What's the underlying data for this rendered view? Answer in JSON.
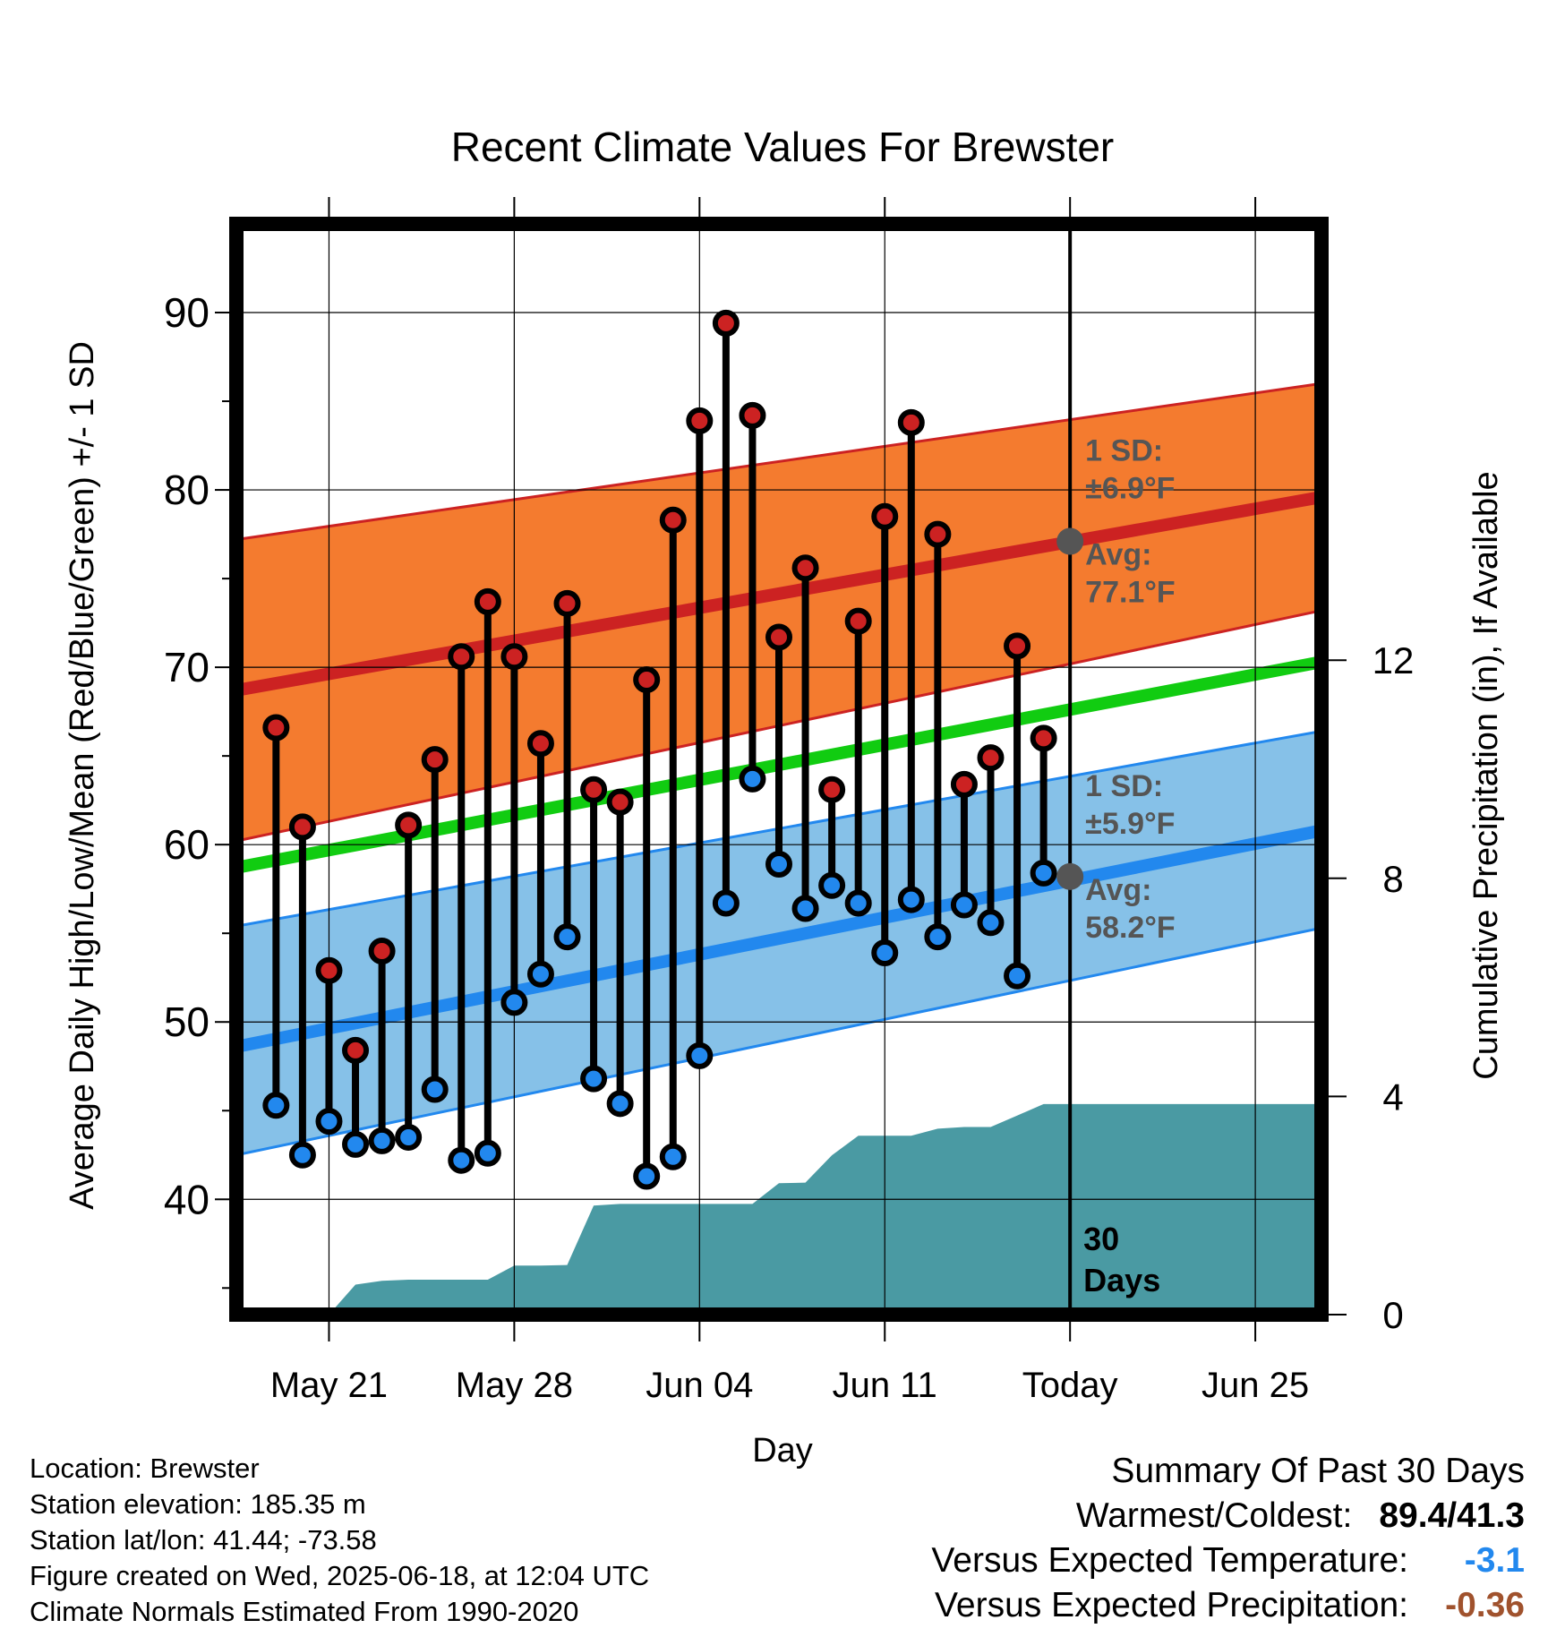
{
  "chart_data": {
    "type": "line",
    "title": "Recent Climate Values For Brewster",
    "xlabel": "Day",
    "ylabel": "Average Daily High/Low/Mean (Red/Blue/Green) +/- 1 SD",
    "y2label": "Cumulative Precipitation (in), If Available",
    "ylim": [
      33.5,
      95
    ],
    "y2lim": [
      0,
      20
    ],
    "yticks": [
      40,
      50,
      60,
      70,
      80,
      90
    ],
    "y2ticks": [
      0,
      4,
      8,
      12
    ],
    "x_tick_labels": [
      "May 21",
      "May 28",
      "Jun 04",
      "Jun 11",
      "Today",
      "Jun 25"
    ],
    "x_tick_day_offsets": [
      -28,
      -21,
      -14,
      -7,
      0,
      7
    ],
    "xlim_day_offsets": [
      -31.5,
      9.5
    ],
    "grid": true,
    "today_marker_label": "30 Days",
    "normals": {
      "x": [
        -31.5,
        9.5
      ],
      "high_avg": [
        68.7,
        79.6
      ],
      "high_sd_upper": [
        77.2,
        86.0
      ],
      "high_sd_lower": [
        60.2,
        73.2
      ],
      "mean_avg": [
        58.7,
        70.3
      ],
      "low_avg": [
        48.6,
        60.8
      ],
      "low_sd_upper": [
        55.4,
        66.4
      ],
      "low_sd_lower": [
        42.5,
        55.3
      ]
    },
    "today_annotations": {
      "high_sd_label": "1 SD:",
      "high_sd_value": "±6.9°F",
      "high_avg_label": "Avg:",
      "high_avg_value": "77.1°F",
      "high_avg": 77.1,
      "low_sd_label": "1 SD:",
      "low_sd_value": "±5.9°F",
      "low_avg_label": "Avg:",
      "low_avg_value": "58.2°F",
      "low_avg": 58.2
    },
    "series": [
      {
        "name": "High",
        "color": "#cc2222",
        "x": [
          -30,
          -29,
          -28,
          -27,
          -26,
          -25,
          -24,
          -23,
          -22,
          -21,
          -20,
          -19,
          -18,
          -17,
          -16,
          -15,
          -14,
          -13,
          -12,
          -11,
          -10,
          -9,
          -8,
          -7,
          -6,
          -5,
          -4,
          -3,
          -2,
          -1
        ],
        "values": [
          66.6,
          61.0,
          52.9,
          48.4,
          54.0,
          61.1,
          64.8,
          70.6,
          73.7,
          70.6,
          65.7,
          73.6,
          63.1,
          62.4,
          69.3,
          78.3,
          83.9,
          89.4,
          84.2,
          71.7,
          75.6,
          63.1,
          72.6,
          78.5,
          83.8,
          77.5,
          63.4,
          64.9,
          71.2,
          66.0
        ]
      },
      {
        "name": "Low",
        "color": "#2288ee",
        "x": [
          -30,
          -29,
          -28,
          -27,
          -26,
          -25,
          -24,
          -23,
          -22,
          -21,
          -20,
          -19,
          -18,
          -17,
          -16,
          -15,
          -14,
          -13,
          -12,
          -11,
          -10,
          -9,
          -8,
          -7,
          -6,
          -5,
          -4,
          -3,
          -2,
          -1
        ],
        "values": [
          45.3,
          42.5,
          44.4,
          43.1,
          43.3,
          43.5,
          46.2,
          42.2,
          42.6,
          51.1,
          52.7,
          54.8,
          46.8,
          45.4,
          41.3,
          42.4,
          48.1,
          56.7,
          63.7,
          58.9,
          56.4,
          57.7,
          56.7,
          53.9,
          56.9,
          54.8,
          56.6,
          55.6,
          52.6,
          58.4
        ]
      },
      {
        "name": "Cumulative Precipitation",
        "color": "#4a9aa3",
        "x": [
          -28,
          -27,
          -26,
          -25,
          -24,
          -23,
          -22,
          -21,
          -20,
          -19,
          -18,
          -17,
          -16,
          -15,
          -14,
          -13,
          -12,
          -11,
          -10,
          -9,
          -8,
          -7,
          -6,
          -5,
          -4,
          -3,
          -2,
          -1,
          0,
          9.5
        ],
        "values": [
          0,
          0.55,
          0.62,
          0.64,
          0.64,
          0.64,
          0.64,
          0.9,
          0.9,
          0.91,
          2.0,
          2.03,
          2.03,
          2.03,
          2.03,
          2.03,
          2.03,
          2.41,
          2.42,
          2.92,
          3.28,
          3.28,
          3.28,
          3.41,
          3.44,
          3.44,
          3.65,
          3.86,
          3.86,
          3.86
        ]
      }
    ]
  },
  "info": {
    "location": "Location: Brewster",
    "elevation": "Station elevation: 185.35 m",
    "latlon": "Station lat/lon: 41.44; -73.58",
    "created": "Figure created on Wed, 2025-06-18, at 12:04 UTC",
    "normals": "Climate Normals Estimated From 1990-2020"
  },
  "summary": {
    "heading": "Summary Of Past 30 Days",
    "warm_cold_label": "Warmest/Coldest:",
    "warm_cold_value": "89.4/41.3",
    "temp_label": "Versus Expected Temperature:",
    "temp_value": "-3.1",
    "temp_color": "#2288ee",
    "precip_label": "Versus Expected Precipitation:",
    "precip_value": "-0.36",
    "precip_color": "#a0522d"
  },
  "colors": {
    "high_band": "#f47b2f",
    "high_avg_line": "#cc2222",
    "mean_line": "#11cc11",
    "low_band": "#86c1e8",
    "low_avg_line": "#2288ee",
    "precip_fill": "#4a9aa3",
    "annotation_text": "#555555"
  }
}
